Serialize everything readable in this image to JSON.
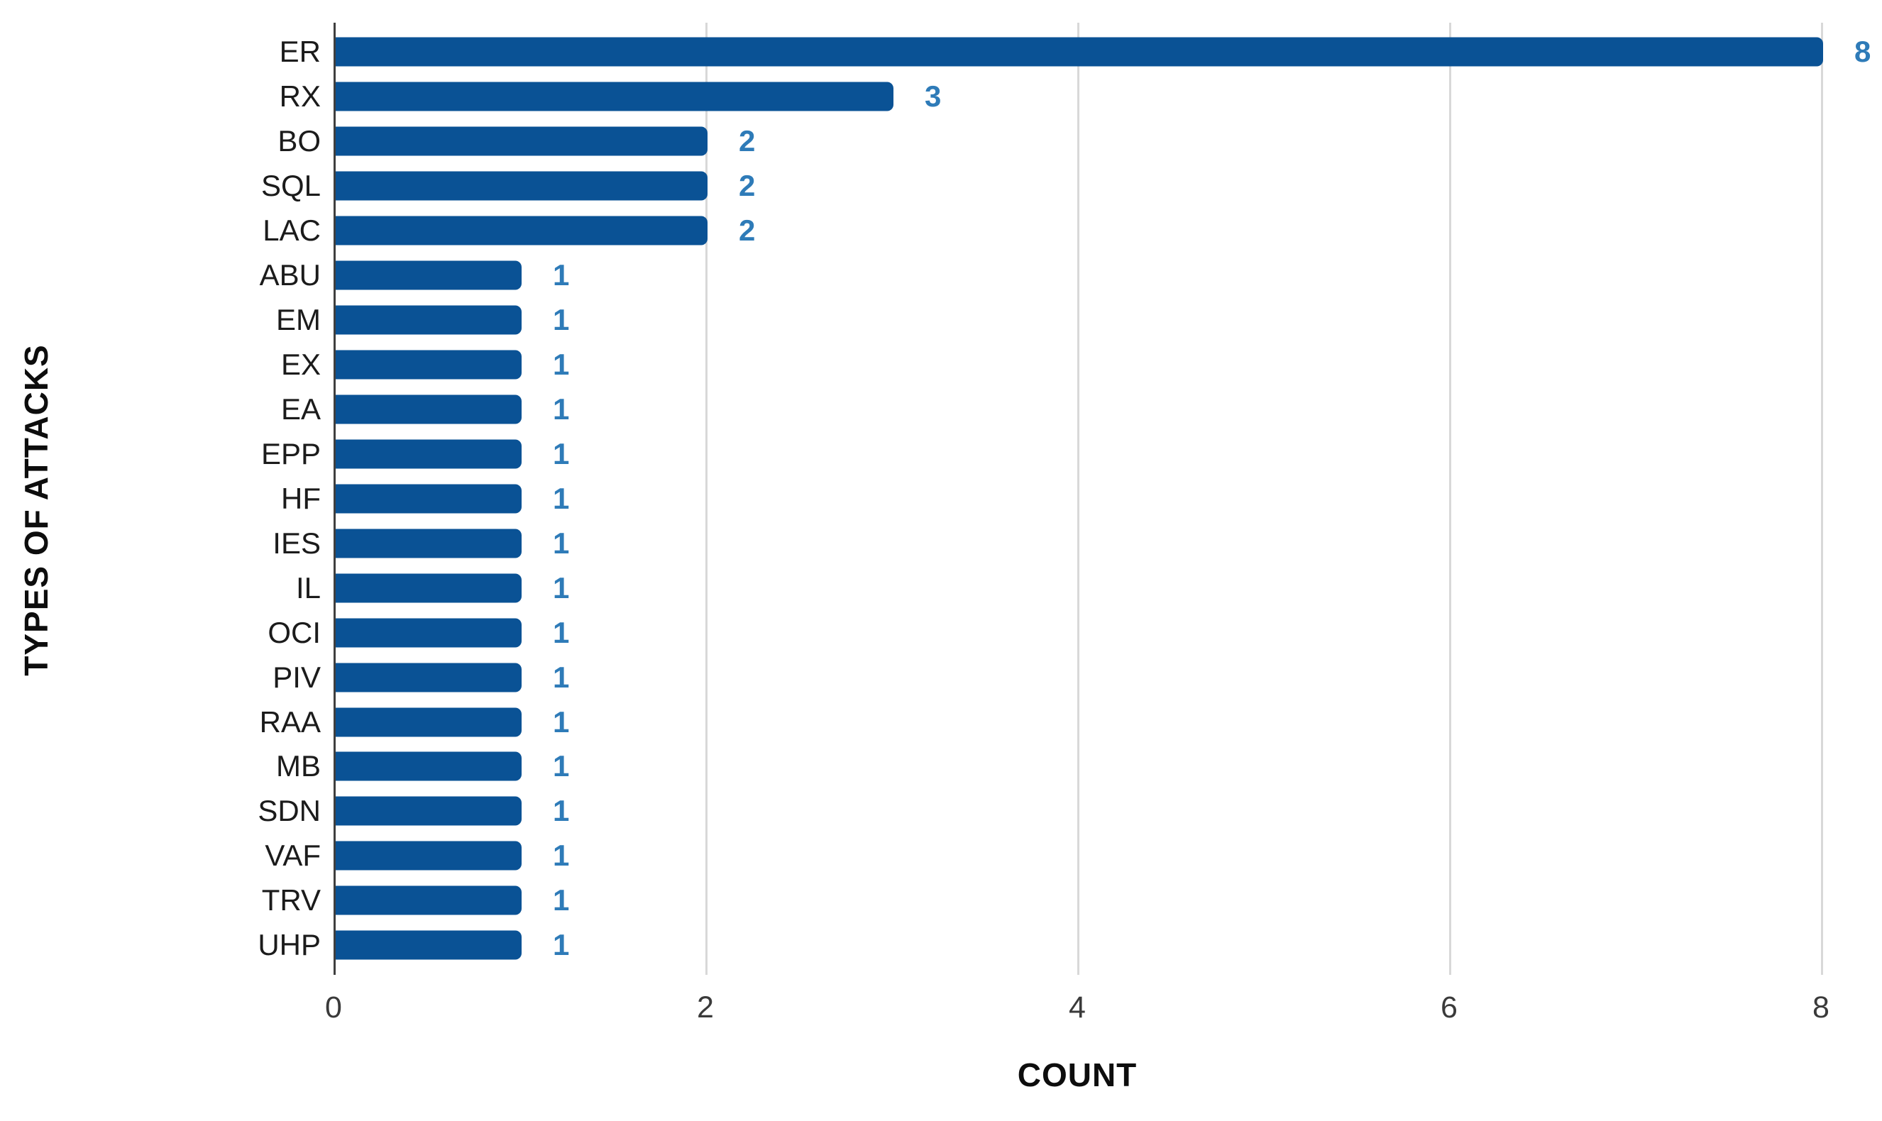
{
  "chart_data": {
    "type": "bar",
    "orientation": "horizontal",
    "title": "",
    "xlabel": "COUNT",
    "ylabel": "TYPES OF ATTACKS",
    "categories": [
      "ER",
      "RX",
      "BO",
      "SQL",
      "LAC",
      "ABU",
      "EM",
      "EX",
      "EA",
      "EPP",
      "HF",
      "IES",
      "IL",
      "OCI",
      "PIV",
      "RAA",
      "MB",
      "SDN",
      "VAF",
      "TRV",
      "UHP"
    ],
    "values": [
      8,
      3,
      2,
      2,
      2,
      1,
      1,
      1,
      1,
      1,
      1,
      1,
      1,
      1,
      1,
      1,
      1,
      1,
      1,
      1,
      1
    ],
    "data_labels": [
      8,
      3,
      2,
      2,
      2,
      1,
      1,
      1,
      1,
      1,
      1,
      1,
      1,
      1,
      1,
      1,
      1,
      1,
      1,
      1,
      1
    ],
    "xlim": [
      0,
      8
    ],
    "xticks": [
      0,
      2,
      4,
      6,
      8
    ],
    "grid": "vertical",
    "legend": "none",
    "bar_color": "#0a5295",
    "value_label_color": "#2e7bb8"
  }
}
